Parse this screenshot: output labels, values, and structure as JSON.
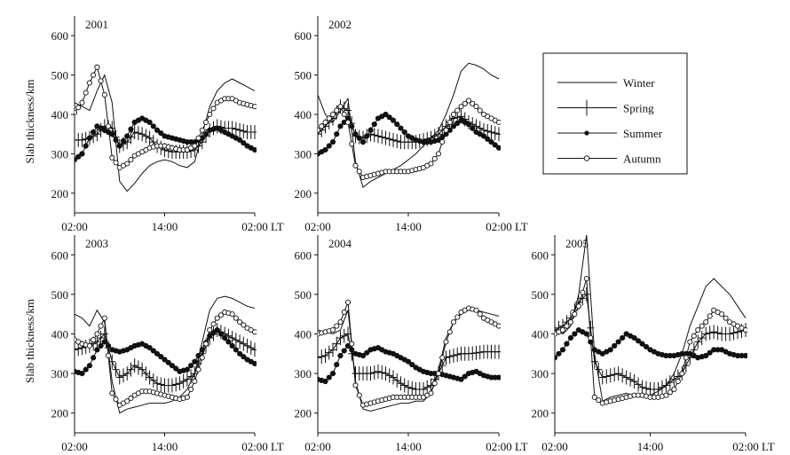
{
  "x_tick_labels": [
    "02:00",
    "14:00",
    "02:00"
  ],
  "x_unit": "LT",
  "ylabel": "Slab thickness/km",
  "legend": {
    "placement": "right",
    "entries": [
      {
        "name": "Winter",
        "marker": "none"
      },
      {
        "name": "Spring",
        "marker": "plus"
      },
      {
        "name": "Summer",
        "marker": "filled-circle"
      },
      {
        "name": "Autumn",
        "marker": "open-circle"
      }
    ]
  },
  "chart_data": [
    {
      "type": "line",
      "title": "2001",
      "ylim": [
        150,
        650
      ],
      "xlim": [
        0,
        24
      ],
      "yticks": [
        200,
        300,
        400,
        500,
        600
      ],
      "x": [
        0,
        1,
        2,
        3,
        4,
        5,
        6,
        7,
        8,
        9,
        10,
        11,
        12,
        13,
        14,
        15,
        16,
        17,
        18,
        19,
        20,
        21,
        22,
        23,
        24
      ],
      "series": [
        {
          "name": "Winter",
          "values": [
            430,
            420,
            410,
            460,
            500,
            430,
            230,
            205,
            225,
            250,
            270,
            280,
            285,
            280,
            270,
            265,
            280,
            350,
            420,
            460,
            480,
            490,
            480,
            470,
            460
          ]
        },
        {
          "name": "Spring",
          "values": [
            335,
            335,
            340,
            350,
            370,
            365,
            320,
            330,
            355,
            350,
            340,
            320,
            310,
            305,
            305,
            305,
            310,
            330,
            360,
            370,
            365,
            365,
            360,
            355,
            355
          ]
        },
        {
          "name": "Summer",
          "values": [
            285,
            300,
            340,
            370,
            360,
            350,
            320,
            345,
            380,
            390,
            380,
            360,
            345,
            340,
            335,
            330,
            330,
            340,
            360,
            365,
            355,
            345,
            335,
            320,
            310
          ]
        },
        {
          "name": "Autumn",
          "values": [
            405,
            430,
            480,
            520,
            450,
            290,
            265,
            275,
            295,
            305,
            315,
            320,
            320,
            315,
            310,
            310,
            320,
            360,
            400,
            430,
            440,
            440,
            430,
            425,
            420
          ]
        }
      ]
    },
    {
      "type": "line",
      "title": "2002",
      "ylim": [
        150,
        650
      ],
      "xlim": [
        0,
        24
      ],
      "yticks": [
        200,
        300,
        400,
        500,
        600
      ],
      "x": [
        0,
        1,
        2,
        3,
        4,
        5,
        6,
        7,
        8,
        9,
        10,
        11,
        12,
        13,
        14,
        15,
        16,
        17,
        18,
        19,
        20,
        21,
        22,
        23,
        24
      ],
      "series": [
        {
          "name": "Winter",
          "values": [
            450,
            400,
            380,
            410,
            440,
            280,
            215,
            230,
            240,
            250,
            260,
            270,
            285,
            300,
            320,
            340,
            360,
            400,
            450,
            510,
            530,
            525,
            515,
            500,
            490
          ]
        },
        {
          "name": "Spring",
          "values": [
            350,
            370,
            390,
            420,
            410,
            345,
            340,
            350,
            345,
            340,
            335,
            330,
            330,
            330,
            335,
            340,
            350,
            370,
            390,
            395,
            380,
            370,
            360,
            355,
            350
          ]
        },
        {
          "name": "Summer",
          "values": [
            300,
            310,
            330,
            370,
            390,
            350,
            330,
            360,
            390,
            400,
            385,
            365,
            345,
            335,
            330,
            330,
            335,
            350,
            370,
            385,
            375,
            355,
            345,
            330,
            315
          ]
        },
        {
          "name": "Autumn",
          "values": [
            360,
            380,
            400,
            420,
            380,
            270,
            240,
            245,
            250,
            255,
            255,
            255,
            255,
            260,
            265,
            275,
            300,
            360,
            400,
            420,
            435,
            420,
            400,
            390,
            380
          ]
        }
      ]
    },
    {
      "type": "line",
      "title": "2003",
      "ylim": [
        150,
        650
      ],
      "xlim": [
        0,
        24
      ],
      "yticks": [
        200,
        300,
        400,
        500,
        600
      ],
      "x": [
        0,
        1,
        2,
        3,
        4,
        5,
        6,
        7,
        8,
        9,
        10,
        11,
        12,
        13,
        14,
        15,
        16,
        17,
        18,
        19,
        20,
        21,
        22,
        23,
        24
      ],
      "series": [
        {
          "name": "Winter",
          "values": [
            450,
            440,
            420,
            460,
            430,
            280,
            200,
            210,
            215,
            220,
            225,
            225,
            225,
            230,
            240,
            260,
            300,
            380,
            460,
            490,
            495,
            490,
            480,
            470,
            465
          ]
        },
        {
          "name": "Spring",
          "values": [
            360,
            365,
            370,
            380,
            400,
            330,
            290,
            300,
            320,
            310,
            290,
            275,
            270,
            270,
            275,
            285,
            300,
            350,
            390,
            410,
            400,
            390,
            380,
            370,
            360
          ]
        },
        {
          "name": "Summer",
          "values": [
            305,
            300,
            320,
            360,
            380,
            360,
            355,
            360,
            370,
            375,
            365,
            350,
            335,
            320,
            305,
            310,
            330,
            360,
            395,
            410,
            390,
            370,
            350,
            335,
            325
          ]
        },
        {
          "name": "Autumn",
          "values": [
            385,
            375,
            370,
            400,
            440,
            250,
            220,
            230,
            245,
            255,
            255,
            250,
            245,
            240,
            235,
            240,
            280,
            340,
            410,
            440,
            455,
            450,
            430,
            415,
            405
          ]
        }
      ]
    },
    {
      "type": "line",
      "title": "2004",
      "ylim": [
        150,
        650
      ],
      "xlim": [
        0,
        24
      ],
      "yticks": [
        200,
        300,
        400,
        500,
        600
      ],
      "x": [
        0,
        1,
        2,
        3,
        4,
        5,
        6,
        7,
        8,
        9,
        10,
        11,
        12,
        13,
        14,
        15,
        16,
        17,
        18,
        19,
        20,
        21,
        22,
        23,
        24
      ],
      "series": [
        {
          "name": "Winter",
          "values": [
            410,
            405,
            400,
            410,
            460,
            280,
            210,
            205,
            210,
            215,
            220,
            225,
            225,
            230,
            230,
            250,
            310,
            390,
            430,
            450,
            460,
            460,
            455,
            450,
            445
          ]
        },
        {
          "name": "Spring",
          "values": [
            340,
            345,
            360,
            390,
            400,
            300,
            300,
            300,
            305,
            300,
            290,
            275,
            265,
            260,
            260,
            270,
            300,
            340,
            345,
            350,
            350,
            352,
            355,
            355,
            355
          ]
        },
        {
          "name": "Summer",
          "values": [
            285,
            280,
            300,
            345,
            370,
            350,
            345,
            360,
            365,
            355,
            350,
            340,
            330,
            315,
            305,
            300,
            300,
            295,
            290,
            285,
            300,
            305,
            295,
            290,
            290
          ]
        },
        {
          "name": "Autumn",
          "values": [
            400,
            405,
            410,
            430,
            480,
            270,
            220,
            225,
            230,
            235,
            240,
            240,
            240,
            240,
            240,
            250,
            300,
            380,
            430,
            455,
            465,
            460,
            440,
            430,
            420
          ]
        }
      ]
    },
    {
      "type": "line",
      "title": "2005",
      "ylim": [
        150,
        650
      ],
      "xlim": [
        0,
        24
      ],
      "yticks": [
        200,
        300,
        400,
        500,
        600
      ],
      "x": [
        0,
        1,
        2,
        3,
        4,
        5,
        6,
        7,
        8,
        9,
        10,
        11,
        12,
        13,
        14,
        15,
        16,
        17,
        18,
        19,
        20,
        21,
        22,
        23,
        24
      ],
      "series": [
        {
          "name": "Winter",
          "values": [
            410,
            400,
            420,
            500,
            650,
            350,
            230,
            240,
            245,
            250,
            245,
            240,
            245,
            255,
            270,
            300,
            350,
            420,
            470,
            520,
            540,
            520,
            500,
            470,
            440
          ]
        },
        {
          "name": "Spring",
          "values": [
            410,
            420,
            440,
            480,
            500,
            330,
            290,
            295,
            300,
            290,
            280,
            265,
            260,
            260,
            270,
            285,
            300,
            340,
            380,
            400,
            405,
            400,
            400,
            405,
            410
          ]
        },
        {
          "name": "Summer",
          "values": [
            340,
            360,
            390,
            410,
            400,
            360,
            350,
            360,
            380,
            400,
            390,
            375,
            360,
            350,
            345,
            345,
            350,
            350,
            340,
            345,
            360,
            360,
            350,
            345,
            345
          ]
        },
        {
          "name": "Autumn",
          "values": [
            400,
            410,
            430,
            470,
            540,
            240,
            225,
            230,
            235,
            240,
            245,
            245,
            240,
            240,
            245,
            260,
            300,
            380,
            410,
            430,
            460,
            450,
            430,
            420,
            410
          ]
        }
      ]
    }
  ]
}
